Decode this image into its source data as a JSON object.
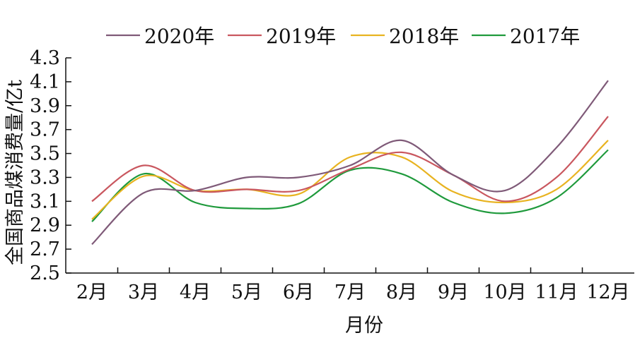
{
  "chart_data": {
    "type": "line",
    "title": "",
    "xlabel": "月份",
    "ylabel": "全国商品煤消费量/亿t",
    "categories": [
      "2月",
      "3月",
      "4月",
      "5月",
      "6月",
      "7月",
      "8月",
      "9月",
      "10月",
      "11月",
      "12月"
    ],
    "ylim": [
      2.5,
      4.3
    ],
    "yticks": [
      "2.5",
      "2.7",
      "2.9",
      "3.1",
      "3.3",
      "3.5",
      "3.7",
      "3.9",
      "4.1",
      "4.3"
    ],
    "grid": false,
    "legend_position": "top",
    "series": [
      {
        "name": "2020年",
        "color": "#7f5a78",
        "values": [
          2.74,
          3.17,
          3.19,
          3.3,
          3.3,
          3.4,
          3.61,
          3.32,
          3.19,
          3.55,
          4.11
        ]
      },
      {
        "name": "2019年",
        "color": "#c9575f",
        "values": [
          3.1,
          3.4,
          3.19,
          3.2,
          3.19,
          3.37,
          3.51,
          3.32,
          3.1,
          3.3,
          3.81
        ]
      },
      {
        "name": "2018年",
        "color": "#e8b320",
        "values": [
          2.95,
          3.31,
          3.19,
          3.2,
          3.16,
          3.47,
          3.47,
          3.18,
          3.09,
          3.2,
          3.61
        ]
      },
      {
        "name": "2017年",
        "color": "#1f9a3c",
        "values": [
          2.93,
          3.33,
          3.09,
          3.04,
          3.08,
          3.36,
          3.33,
          3.09,
          3.0,
          3.13,
          3.53
        ]
      }
    ]
  }
}
